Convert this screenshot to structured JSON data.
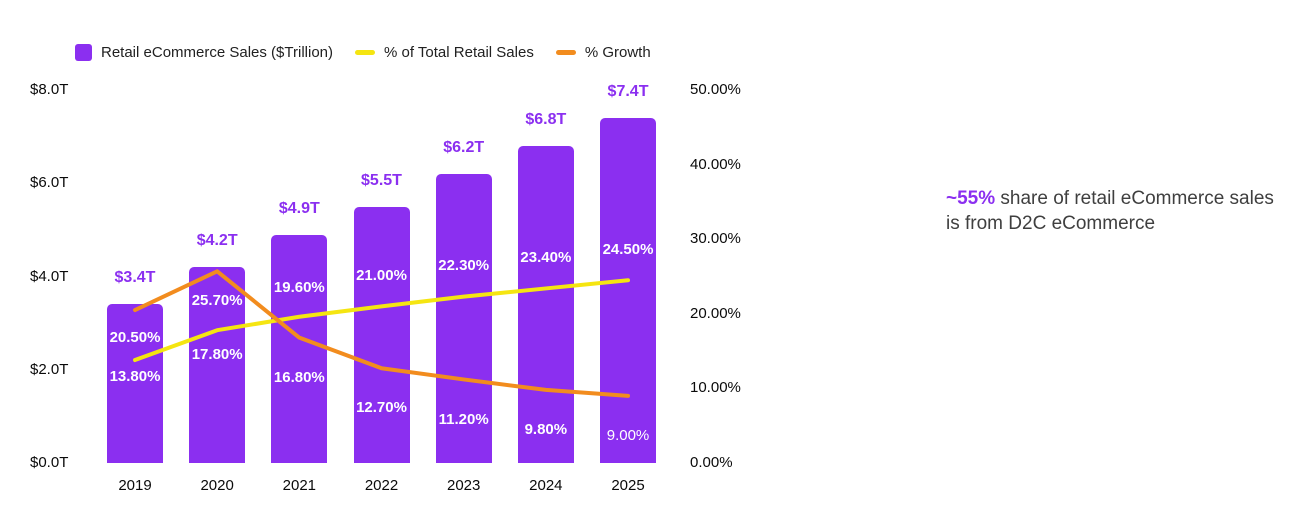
{
  "legend": [
    {
      "label": "Retail eCommerce Sales ($Trillion)",
      "color": "#8B2FF0",
      "shape": "square"
    },
    {
      "label": "% of Total Retail Sales",
      "color": "#F5E511",
      "shape": "dash"
    },
    {
      "label": "% Growth",
      "color": "#F28C1E",
      "shape": "dash"
    }
  ],
  "chart_data": {
    "type": "bar+line combo",
    "categories": [
      "2019",
      "2020",
      "2021",
      "2022",
      "2023",
      "2024",
      "2025"
    ],
    "series": [
      {
        "name": "Retail eCommerce Sales ($Trillion)",
        "type": "bar",
        "axis": "left",
        "color": "#8B2FF0",
        "values": [
          3.4,
          4.2,
          4.9,
          5.5,
          6.2,
          6.8,
          7.4
        ],
        "labels": [
          "$3.4T",
          "$4.2T",
          "$4.9T",
          "$5.5T",
          "$6.2T",
          "$6.8T",
          "$7.4T"
        ]
      },
      {
        "name": "% of Total Retail Sales",
        "type": "line",
        "axis": "right",
        "color": "#F5E511",
        "values": [
          13.8,
          17.8,
          19.6,
          21.0,
          22.3,
          23.4,
          24.5
        ],
        "labels": [
          "13.80%",
          "17.80%",
          "19.60%",
          "21.00%",
          "22.30%",
          "23.40%",
          "24.50%"
        ]
      },
      {
        "name": "% Growth",
        "type": "line",
        "axis": "right",
        "color": "#F28C1E",
        "values": [
          20.5,
          25.7,
          16.8,
          12.7,
          11.2,
          9.8,
          9.0
        ],
        "labels": [
          "20.50%",
          "25.70%",
          "16.80%",
          "12.70%",
          "11.20%",
          "9.80%",
          "9.00%"
        ]
      }
    ],
    "left_axis": {
      "ticks": [
        "$8.0T",
        "$6.0T",
        "$4.0T",
        "$2.0T",
        "$0.0T"
      ],
      "values": [
        8,
        6,
        4,
        2,
        0
      ],
      "max": 8,
      "min": 0
    },
    "right_axis": {
      "ticks": [
        "50.00%",
        "40.00%",
        "30.00%",
        "20.00%",
        "10.00%",
        "0.00%"
      ],
      "values": [
        50,
        40,
        30,
        20,
        10,
        0
      ],
      "max": 50,
      "min": 0
    },
    "grid": "off",
    "legend_position": "top-left"
  },
  "annotation": {
    "highlight": "~55%",
    "highlight_color": "#8B2FF0",
    "text_after": " share of retail eCommerce sales is from D2C eCommerce"
  }
}
